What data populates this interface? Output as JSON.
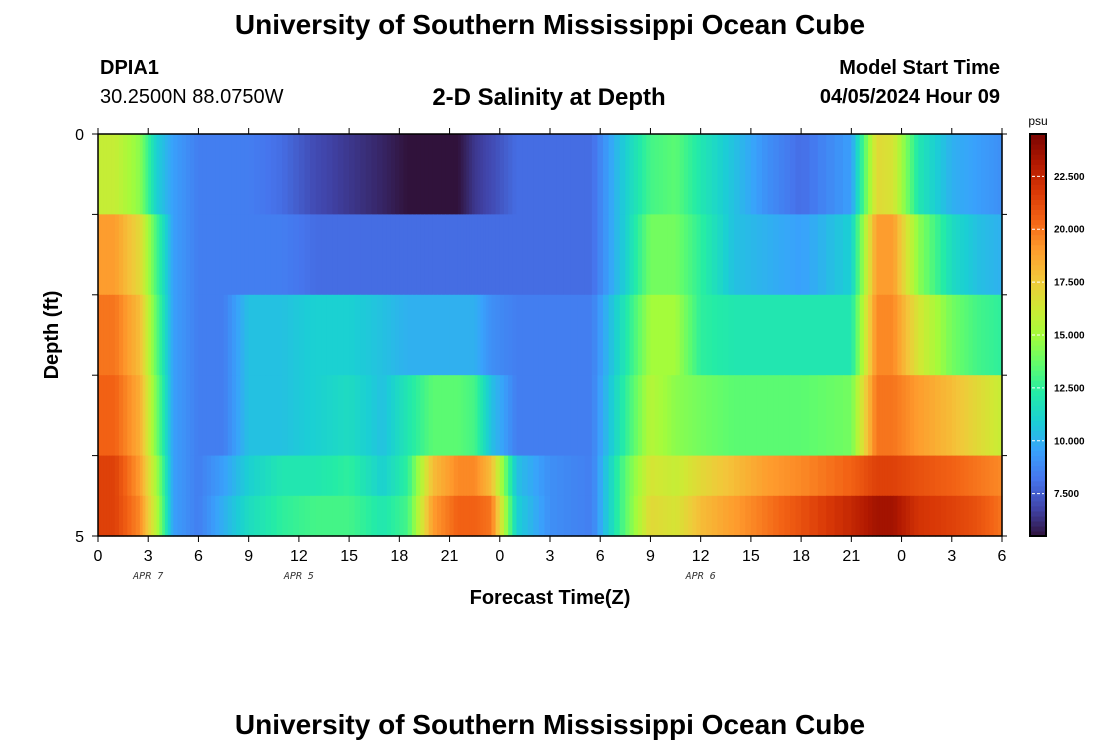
{
  "header": {
    "title": "University of Southern Mississippi Ocean Cube",
    "station_id": "DPIA1",
    "station_coords": "30.2500N  88.0750W",
    "plot_title": "2-D Salinity at Depth",
    "model_start_label": "Model Start Time",
    "model_start_value": "04/05/2024 Hour 09",
    "footer_title": "University of Southern Mississippi Ocean Cube"
  },
  "chart_data": {
    "type": "heatmap",
    "title": "2-D Salinity at Depth",
    "xlabel": "Forecast Time(Z)",
    "ylabel": "Depth (ft)",
    "x_tick_labels": [
      "0",
      "3",
      "6",
      "9",
      "12",
      "15",
      "18",
      "21",
      "0",
      "3",
      "6",
      "9",
      "12",
      "15",
      "18",
      "21",
      "0",
      "3",
      "6"
    ],
    "date_labels": [
      {
        "label": "APR 5",
        "tick": "12"
      },
      {
        "label": "APR 6",
        "tick": "12"
      },
      {
        "label": "APR 7",
        "tick": "3"
      }
    ],
    "y_tick_labels": [
      "0",
      "5"
    ],
    "ylim": [
      0,
      5
    ],
    "x_hours": [
      0,
      54
    ],
    "depth_levels": [
      0,
      1,
      2,
      3,
      4,
      5
    ],
    "colorbar": {
      "unit": "psu",
      "min": 5.5,
      "max": 24.5,
      "ticks": [
        "7.500",
        "10.000",
        "12.500",
        "15.000",
        "17.500",
        "20.000",
        "22.500"
      ],
      "tick_values": [
        7.5,
        10,
        12.5,
        15,
        17.5,
        20,
        22.5
      ]
    },
    "time_breakpoints_hours": [
      0,
      1,
      2.5,
      3.5,
      4.5,
      6,
      7.5,
      9,
      11,
      13,
      15,
      17,
      18.5,
      20,
      21.5,
      22.5,
      23.5,
      25,
      27,
      29.5,
      31.5,
      33,
      34.5,
      36,
      38,
      40,
      42,
      45,
      46.5,
      47.5,
      49,
      51,
      52.5,
      54
    ],
    "salinity_psu_by_layer": {
      "layer_0_1ft": [
        16,
        16,
        14.5,
        11,
        9.5,
        8.5,
        8.5,
        8.5,
        8,
        7,
        6.5,
        6,
        5.5,
        5.5,
        5.5,
        6.5,
        7,
        8,
        8,
        8,
        11,
        13,
        13.5,
        12,
        10.5,
        9,
        8,
        9.5,
        17,
        16.5,
        12,
        10,
        9.5,
        9
      ],
      "layer_1_2ft": [
        19,
        19,
        17,
        13,
        9.5,
        8.5,
        8.5,
        8.5,
        8.5,
        8,
        8,
        8,
        8,
        8,
        8,
        8,
        8,
        8,
        8,
        8,
        11,
        14,
        14,
        12.5,
        10.5,
        10,
        9.5,
        11,
        19,
        19,
        14.5,
        11.5,
        10.5,
        10
      ],
      "layer_2_3ft": [
        20,
        20,
        18,
        13.5,
        9.5,
        8.5,
        8.5,
        10.5,
        10.5,
        11,
        11,
        10.5,
        10,
        10,
        10,
        10,
        9,
        8.5,
        8.5,
        8.5,
        12,
        15,
        15,
        12.5,
        12,
        12,
        12,
        12,
        19.5,
        19.5,
        16.5,
        14,
        13,
        12.5
      ],
      "layer_3_4ft": [
        20.5,
        20.5,
        18.5,
        14,
        9.5,
        8.5,
        8.5,
        10.5,
        10.5,
        11,
        11.5,
        10.5,
        12,
        13.5,
        13.5,
        13,
        10.5,
        8.5,
        8.5,
        8.5,
        12.5,
        15.5,
        14.5,
        14,
        13.5,
        13.5,
        13.5,
        14,
        20,
        20,
        19,
        18,
        17,
        16
      ],
      "layer_4_5ft": [
        21.5,
        21.5,
        19,
        15,
        9.5,
        8.5,
        9.5,
        11,
        12,
        12,
        12.5,
        11,
        12.5,
        18,
        19.5,
        19.5,
        18,
        10.5,
        9,
        8.5,
        13.5,
        16.5,
        16,
        17,
        18,
        19,
        19.5,
        20.5,
        21.5,
        21.5,
        21,
        20.5,
        20,
        19.5
      ],
      "layer_5ft": [
        21.5,
        21.5,
        19.5,
        15.5,
        9.5,
        8.5,
        10,
        11.5,
        12.5,
        13,
        13,
        12,
        13,
        19,
        20.5,
        20.5,
        20,
        11,
        9,
        8.5,
        13.5,
        17,
        16.5,
        18,
        19,
        20,
        21,
        22.5,
        23.5,
        23.5,
        22,
        21.5,
        21,
        20
      ]
    },
    "colors": {
      "scale": [
        "#30123b",
        "#4145ab",
        "#4675ed",
        "#39a2fc",
        "#1bcfd4",
        "#24eca6",
        "#61fc6c",
        "#a4fc3b",
        "#d1e834",
        "#f3c63a",
        "#fe9b2d",
        "#f36315",
        "#d93806",
        "#b11901",
        "#7a0402"
      ],
      "frame": "#000000"
    }
  }
}
